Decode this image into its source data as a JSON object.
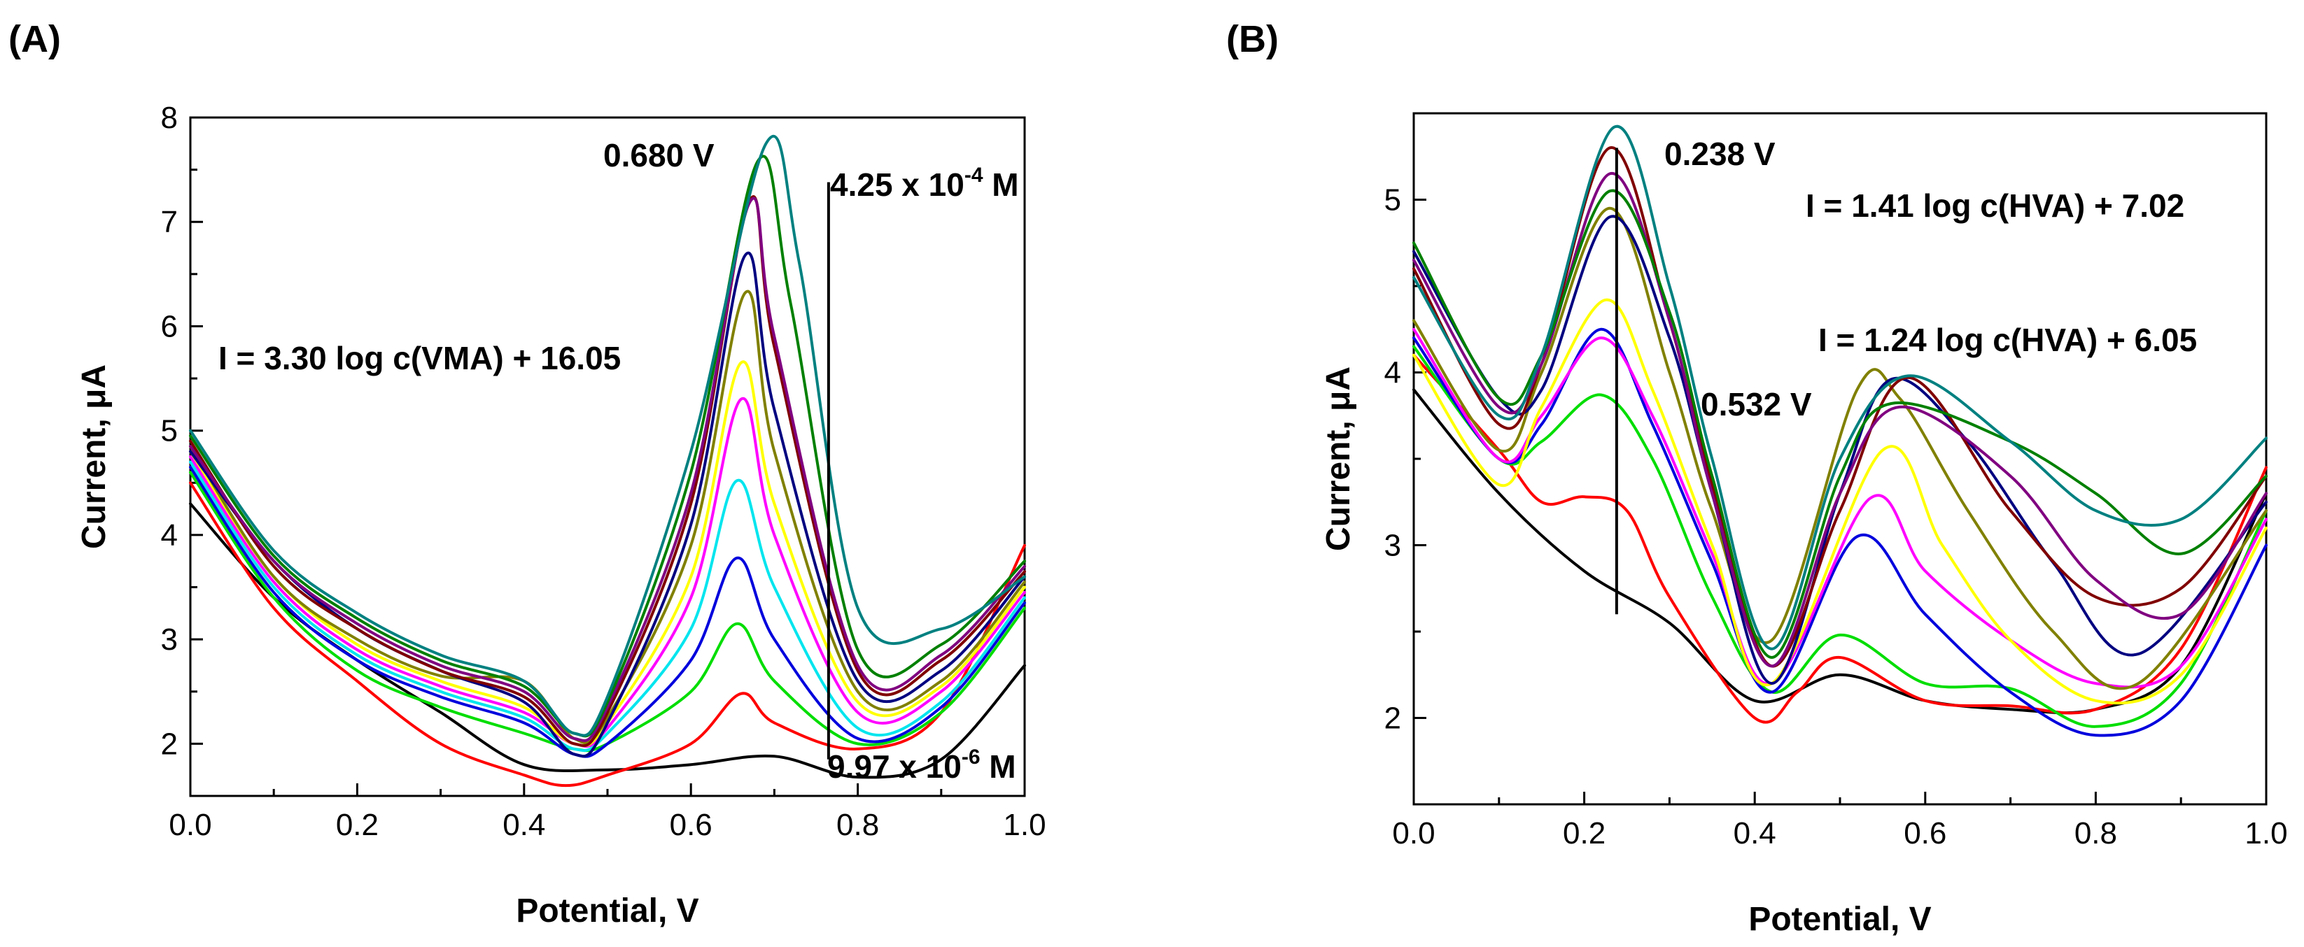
{
  "chart_data": [
    {
      "panel": "(A)",
      "type": "line",
      "xlabel": "Potential, V",
      "ylabel": "Current, μA",
      "xlim": [
        0.0,
        1.0
      ],
      "ylim": [
        1.5,
        8.0
      ],
      "xticks": [
        0.0,
        0.2,
        0.4,
        0.6,
        0.8,
        1.0
      ],
      "xtick_labels": [
        "0.0",
        "0.2",
        "0.4",
        "0.6",
        "0.8",
        "1.0"
      ],
      "yticks": [
        2,
        3,
        4,
        5,
        6,
        7,
        8
      ],
      "ytick_labels": [
        "2",
        "3",
        "4",
        "5",
        "6",
        "7",
        "8"
      ],
      "annotations": {
        "peak": "0.680 V",
        "equation": "I = 3.30 log c(VMA) + 16.05",
        "conc_high": "4.25 x 10",
        "conc_high_exp": "-4",
        "conc_high_unit": " M",
        "conc_low": "9.97 x 10",
        "conc_low_exp": "-6",
        "conc_low_unit": " M"
      },
      "concentration_marker": {
        "x": 0.765,
        "y_from": 1.85,
        "y_to": 7.38
      },
      "series": [
        {
          "name": "blank",
          "color": "#000000",
          "x": [
            0.0,
            0.1,
            0.2,
            0.3,
            0.4,
            0.5,
            0.6,
            0.7,
            0.8,
            0.9,
            1.0
          ],
          "y": [
            4.3,
            3.4,
            2.8,
            2.3,
            1.8,
            1.75,
            1.8,
            1.88,
            1.68,
            1.85,
            2.75
          ]
        },
        {
          "name": "c1",
          "color": "#ff0000",
          "x": [
            0.0,
            0.1,
            0.2,
            0.3,
            0.4,
            0.45,
            0.5,
            0.6,
            0.66,
            0.7,
            0.8,
            0.9,
            1.0
          ],
          "y": [
            4.5,
            3.3,
            2.6,
            2.0,
            1.7,
            1.6,
            1.7,
            2.0,
            2.48,
            2.2,
            1.95,
            2.3,
            3.9
          ]
        },
        {
          "name": "c2",
          "color": "#00dd00",
          "x": [
            0.0,
            0.1,
            0.2,
            0.3,
            0.4,
            0.46,
            0.5,
            0.6,
            0.655,
            0.7,
            0.8,
            0.9,
            1.0
          ],
          "y": [
            4.6,
            3.4,
            2.7,
            2.35,
            2.1,
            1.95,
            2.0,
            2.5,
            3.15,
            2.6,
            2.0,
            2.3,
            3.3
          ]
        },
        {
          "name": "c3",
          "color": "#0000dd",
          "x": [
            0.0,
            0.1,
            0.2,
            0.3,
            0.4,
            0.46,
            0.5,
            0.6,
            0.655,
            0.7,
            0.8,
            0.9,
            1.0
          ],
          "y": [
            4.65,
            3.45,
            2.8,
            2.45,
            2.2,
            1.9,
            2.0,
            2.8,
            3.78,
            3.0,
            2.05,
            2.35,
            3.35
          ]
        },
        {
          "name": "c4",
          "color": "#00e5ee",
          "x": [
            0.0,
            0.1,
            0.2,
            0.3,
            0.4,
            0.46,
            0.5,
            0.6,
            0.655,
            0.7,
            0.8,
            0.9,
            1.0
          ],
          "y": [
            4.7,
            3.5,
            2.85,
            2.5,
            2.25,
            1.95,
            2.1,
            3.1,
            4.52,
            3.5,
            2.15,
            2.4,
            3.4
          ]
        },
        {
          "name": "c5",
          "color": "#ff00ff",
          "x": [
            0.0,
            0.1,
            0.2,
            0.3,
            0.4,
            0.46,
            0.5,
            0.6,
            0.66,
            0.7,
            0.8,
            0.9,
            1.0
          ],
          "y": [
            4.75,
            3.55,
            2.9,
            2.55,
            2.3,
            2.0,
            2.15,
            3.4,
            5.3,
            4.0,
            2.3,
            2.5,
            3.45
          ]
        },
        {
          "name": "c6",
          "color": "#ffff00",
          "x": [
            0.0,
            0.1,
            0.2,
            0.3,
            0.4,
            0.46,
            0.5,
            0.6,
            0.66,
            0.7,
            0.8,
            0.9,
            1.0
          ],
          "y": [
            4.8,
            3.6,
            2.95,
            2.6,
            2.35,
            2.0,
            2.2,
            3.6,
            5.65,
            4.3,
            2.4,
            2.55,
            3.5
          ]
        },
        {
          "name": "c7",
          "color": "#808000",
          "x": [
            0.0,
            0.1,
            0.2,
            0.3,
            0.4,
            0.46,
            0.5,
            0.6,
            0.665,
            0.7,
            0.8,
            0.9,
            1.0
          ],
          "y": [
            4.85,
            3.6,
            3.0,
            2.65,
            2.6,
            2.05,
            2.25,
            3.9,
            6.32,
            4.8,
            2.5,
            2.6,
            3.55
          ]
        },
        {
          "name": "c8",
          "color": "#000080",
          "x": [
            0.0,
            0.1,
            0.2,
            0.3,
            0.4,
            0.46,
            0.5,
            0.6,
            0.665,
            0.7,
            0.8,
            0.9,
            1.0
          ],
          "y": [
            4.8,
            3.75,
            3.1,
            2.7,
            2.4,
            1.9,
            2.2,
            4.1,
            6.68,
            5.2,
            2.6,
            2.7,
            3.6
          ]
        },
        {
          "name": "c9",
          "color": "#800000",
          "x": [
            0.0,
            0.1,
            0.2,
            0.3,
            0.4,
            0.46,
            0.5,
            0.6,
            0.67,
            0.7,
            0.8,
            0.9,
            1.0
          ],
          "y": [
            4.9,
            3.7,
            3.1,
            2.7,
            2.45,
            2.0,
            2.3,
            4.3,
            7.2,
            5.8,
            2.7,
            2.8,
            3.65
          ]
        },
        {
          "name": "c10",
          "color": "#800080",
          "x": [
            0.0,
            0.1,
            0.2,
            0.3,
            0.4,
            0.46,
            0.5,
            0.6,
            0.67,
            0.7,
            0.8,
            0.9,
            1.0
          ],
          "y": [
            4.85,
            3.75,
            3.15,
            2.75,
            2.5,
            2.05,
            2.35,
            4.4,
            7.18,
            5.9,
            2.75,
            2.85,
            3.7
          ]
        },
        {
          "name": "c11",
          "color": "#008000",
          "x": [
            0.0,
            0.1,
            0.2,
            0.3,
            0.4,
            0.46,
            0.5,
            0.6,
            0.68,
            0.72,
            0.8,
            0.9,
            1.0
          ],
          "y": [
            4.95,
            3.8,
            3.2,
            2.8,
            2.55,
            2.1,
            2.4,
            4.6,
            7.58,
            6.2,
            2.9,
            2.95,
            3.75
          ]
        },
        {
          "name": "c12",
          "color": "#008080",
          "x": [
            0.0,
            0.1,
            0.2,
            0.3,
            0.4,
            0.46,
            0.5,
            0.6,
            0.69,
            0.73,
            0.8,
            0.9,
            1.0
          ],
          "y": [
            5.0,
            3.85,
            3.25,
            2.85,
            2.6,
            2.1,
            2.45,
            4.8,
            7.75,
            6.6,
            3.3,
            3.1,
            3.6
          ]
        }
      ]
    },
    {
      "panel": "(B)",
      "type": "line",
      "xlabel": "Potential, V",
      "ylabel": "Current, μA",
      "xlim": [
        0.0,
        1.0
      ],
      "ylim": [
        1.5,
        5.5
      ],
      "xticks": [
        0.0,
        0.2,
        0.4,
        0.6,
        0.8,
        1.0
      ],
      "xtick_labels": [
        "0.0",
        "0.2",
        "0.4",
        "0.6",
        "0.8",
        "1.0"
      ],
      "yticks": [
        2,
        3,
        4,
        5
      ],
      "ytick_labels": [
        "2",
        "3",
        "4",
        "5"
      ],
      "annotations": {
        "peak1": "0.238 V",
        "equation1": "I = 1.41 log c(HVA) + 7.02",
        "peak2": "0.532 V",
        "equation2": "I = 1.24 log c(HVA) + 6.05"
      },
      "concentration_marker": {
        "x": 0.238,
        "y_from": 2.6,
        "y_to": 5.3
      },
      "series": [
        {
          "name": "blank",
          "color": "#000000",
          "x": [
            0.0,
            0.1,
            0.2,
            0.3,
            0.4,
            0.5,
            0.6,
            0.7,
            0.8,
            0.9,
            1.0
          ],
          "y": [
            3.9,
            3.3,
            2.85,
            2.55,
            2.1,
            2.25,
            2.1,
            2.05,
            2.05,
            2.3,
            3.3
          ]
        },
        {
          "name": "c1",
          "color": "#ff0000",
          "x": [
            0.0,
            0.1,
            0.15,
            0.2,
            0.25,
            0.3,
            0.4,
            0.45,
            0.5,
            0.6,
            0.7,
            0.8,
            0.9,
            1.0
          ],
          "y": [
            4.1,
            3.55,
            3.25,
            3.28,
            3.2,
            2.7,
            2.0,
            2.15,
            2.35,
            2.1,
            2.07,
            2.05,
            2.4,
            3.45
          ]
        },
        {
          "name": "c2",
          "color": "#00dd00",
          "x": [
            0.0,
            0.1,
            0.15,
            0.22,
            0.28,
            0.35,
            0.42,
            0.5,
            0.6,
            0.7,
            0.8,
            0.9,
            1.0
          ],
          "y": [
            4.15,
            3.5,
            3.6,
            3.87,
            3.5,
            2.7,
            2.15,
            2.48,
            2.2,
            2.17,
            1.95,
            2.2,
            3.2
          ]
        },
        {
          "name": "c3",
          "color": "#0000dd",
          "x": [
            0.0,
            0.1,
            0.15,
            0.22,
            0.28,
            0.35,
            0.42,
            0.52,
            0.6,
            0.7,
            0.8,
            0.9,
            1.0
          ],
          "y": [
            4.2,
            3.5,
            3.7,
            4.25,
            3.7,
            2.9,
            2.15,
            3.05,
            2.6,
            2.15,
            1.9,
            2.1,
            3.0
          ]
        },
        {
          "name": "c4",
          "color": "#ff00ff",
          "x": [
            0.0,
            0.1,
            0.15,
            0.22,
            0.28,
            0.35,
            0.42,
            0.535,
            0.6,
            0.7,
            0.8,
            0.9,
            1.0
          ],
          "y": [
            4.25,
            3.5,
            3.75,
            4.2,
            3.75,
            2.95,
            2.2,
            3.27,
            2.85,
            2.45,
            2.2,
            2.3,
            3.15
          ]
        },
        {
          "name": "c5",
          "color": "#ffff00",
          "x": [
            0.0,
            0.1,
            0.15,
            0.225,
            0.28,
            0.35,
            0.42,
            0.55,
            0.62,
            0.7,
            0.8,
            0.9,
            1.0
          ],
          "y": [
            4.1,
            3.35,
            3.8,
            4.42,
            3.9,
            3.0,
            2.2,
            3.55,
            3.0,
            2.45,
            2.1,
            2.25,
            3.1
          ]
        },
        {
          "name": "c6",
          "color": "#808000",
          "x": [
            0.0,
            0.1,
            0.15,
            0.23,
            0.3,
            0.35,
            0.42,
            0.52,
            0.57,
            0.65,
            0.75,
            0.85,
            1.0
          ],
          "y": [
            4.3,
            3.55,
            4.0,
            4.95,
            4.0,
            3.2,
            2.45,
            3.9,
            3.85,
            3.2,
            2.5,
            2.2,
            3.2
          ]
        },
        {
          "name": "c7",
          "color": "#000080",
          "x": [
            0.0,
            0.1,
            0.15,
            0.23,
            0.3,
            0.35,
            0.42,
            0.5,
            0.56,
            0.65,
            0.75,
            0.85,
            1.0
          ],
          "y": [
            4.7,
            3.85,
            3.9,
            4.9,
            4.2,
            3.3,
            2.2,
            3.3,
            3.96,
            3.6,
            2.9,
            2.37,
            3.25
          ]
        },
        {
          "name": "c8",
          "color": "#800000",
          "x": [
            0.0,
            0.1,
            0.15,
            0.23,
            0.3,
            0.35,
            0.42,
            0.5,
            0.58,
            0.7,
            0.8,
            0.9,
            1.0
          ],
          "y": [
            4.6,
            3.7,
            4.05,
            5.3,
            4.3,
            3.35,
            2.3,
            3.2,
            3.97,
            3.2,
            2.7,
            2.75,
            3.4
          ]
        },
        {
          "name": "c9",
          "color": "#800080",
          "x": [
            0.0,
            0.1,
            0.15,
            0.23,
            0.3,
            0.35,
            0.42,
            0.5,
            0.57,
            0.7,
            0.8,
            0.9,
            1.0
          ],
          "y": [
            4.65,
            3.8,
            4.05,
            5.15,
            4.3,
            3.3,
            2.3,
            3.3,
            3.8,
            3.4,
            2.8,
            2.6,
            3.3
          ]
        },
        {
          "name": "c10",
          "color": "#008000",
          "x": [
            0.0,
            0.1,
            0.15,
            0.23,
            0.3,
            0.35,
            0.42,
            0.5,
            0.56,
            0.7,
            0.8,
            0.9,
            1.0
          ],
          "y": [
            4.75,
            3.85,
            4.1,
            5.05,
            4.35,
            3.4,
            2.35,
            3.4,
            3.82,
            3.6,
            3.3,
            2.95,
            3.4
          ]
        },
        {
          "name": "c11",
          "color": "#008080",
          "x": [
            0.0,
            0.1,
            0.15,
            0.235,
            0.3,
            0.35,
            0.42,
            0.5,
            0.58,
            0.7,
            0.8,
            0.9,
            1.0
          ],
          "y": [
            4.55,
            3.75,
            4.1,
            5.42,
            4.5,
            3.5,
            2.4,
            3.5,
            3.98,
            3.6,
            3.2,
            3.15,
            3.62
          ]
        }
      ]
    }
  ]
}
